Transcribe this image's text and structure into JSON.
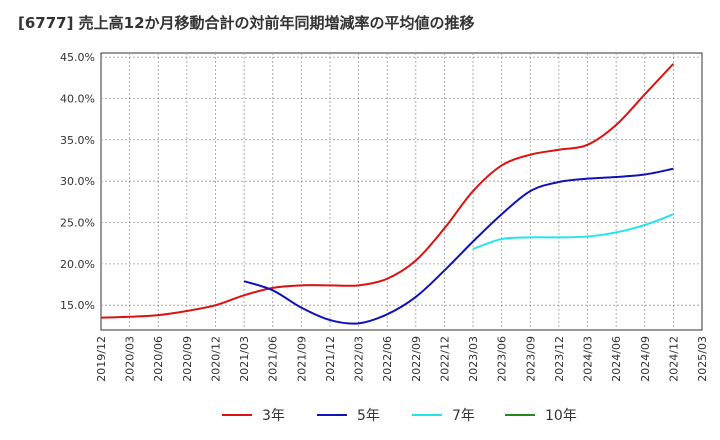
{
  "chart_data": {
    "type": "line",
    "title": "[6777]  売上高12か月移動合計の対前年同期増減率の平均値の推移",
    "xlabel": "",
    "ylabel": "",
    "x_ticks": [
      "2019/12",
      "2020/03",
      "2020/06",
      "2020/09",
      "2020/12",
      "2021/03",
      "2021/06",
      "2021/09",
      "2021/12",
      "2022/03",
      "2022/06",
      "2022/09",
      "2022/12",
      "2023/03",
      "2023/06",
      "2023/09",
      "2023/12",
      "2024/03",
      "2024/06",
      "2024/09",
      "2024/12",
      "2025/03"
    ],
    "y_ticks": [
      "15.0%",
      "20.0%",
      "25.0%",
      "30.0%",
      "35.0%",
      "40.0%",
      "45.0%"
    ],
    "y_tick_values": [
      15,
      20,
      25,
      30,
      35,
      40,
      45
    ],
    "ylim": [
      12,
      45.5
    ],
    "grid": true,
    "legend_position": "bottom",
    "series": [
      {
        "name": "3年",
        "color": "#dd1111",
        "x": [
          "2019/12",
          "2020/03",
          "2020/06",
          "2020/09",
          "2020/12",
          "2021/03",
          "2021/06",
          "2021/09",
          "2021/12",
          "2022/03",
          "2022/06",
          "2022/09",
          "2022/12",
          "2023/03",
          "2023/06",
          "2023/09",
          "2023/12",
          "2024/03",
          "2024/06",
          "2024/09",
          "2024/12"
        ],
        "values": [
          13.5,
          13.6,
          13.8,
          14.3,
          15.0,
          16.2,
          17.1,
          17.4,
          17.4,
          17.4,
          18.2,
          20.4,
          24.3,
          28.8,
          31.9,
          33.2,
          33.8,
          34.4,
          36.8,
          40.5,
          44.2
        ]
      },
      {
        "name": "5年",
        "color": "#1111bb",
        "x": [
          "2021/03",
          "2021/06",
          "2021/09",
          "2021/12",
          "2022/03",
          "2022/06",
          "2022/09",
          "2022/12",
          "2023/03",
          "2023/06",
          "2023/09",
          "2023/12",
          "2024/03",
          "2024/06",
          "2024/09",
          "2024/12"
        ],
        "values": [
          17.9,
          16.8,
          14.7,
          13.2,
          12.8,
          13.9,
          16.0,
          19.2,
          22.7,
          26.0,
          28.8,
          29.9,
          30.3,
          30.5,
          30.8,
          31.5
        ]
      },
      {
        "name": "7年",
        "color": "#22e5ee",
        "x": [
          "2023/03",
          "2023/06",
          "2023/09",
          "2023/12",
          "2024/03",
          "2024/06",
          "2024/09",
          "2024/12"
        ],
        "values": [
          21.8,
          23.0,
          23.2,
          23.2,
          23.3,
          23.8,
          24.7,
          26.0
        ]
      },
      {
        "name": "10年",
        "color": "#228822",
        "x": [],
        "values": []
      }
    ]
  }
}
